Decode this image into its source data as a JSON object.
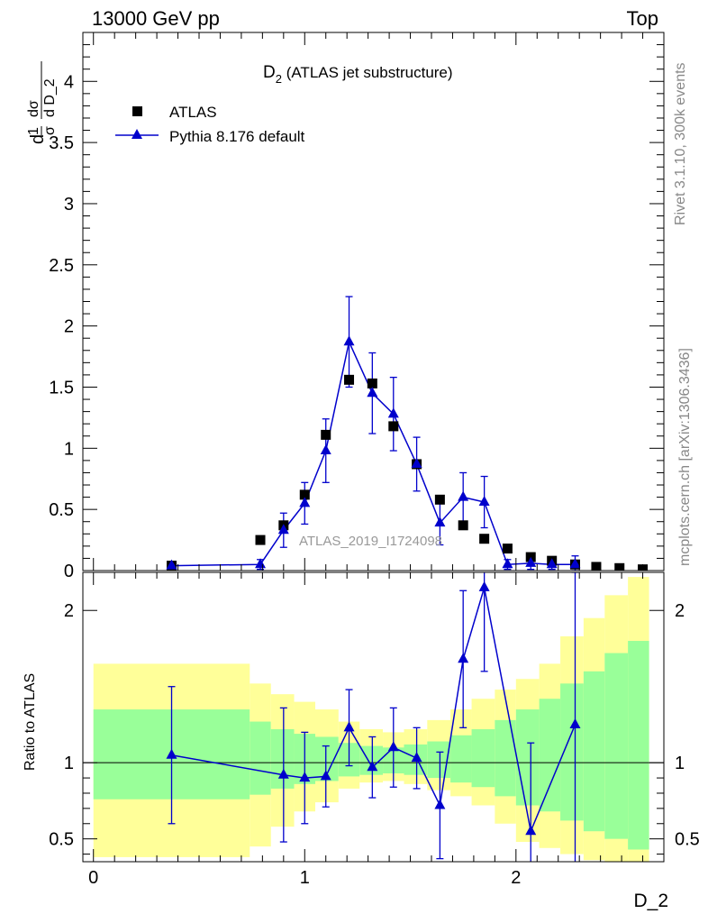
{
  "header": {
    "left": "13000 GeV pp",
    "right": "Top"
  },
  "side_labels": {
    "rivet": "Rivet 3.1.10,  300k events",
    "mcplots": "mcplots.cern.ch [arXiv:1306.3436]"
  },
  "main_title": {
    "base": "D",
    "sub": "2",
    "rest": " (ATLAS jet substructure)"
  },
  "watermark": "ATLAS_2019_I1724098",
  "ylabel_main": "1/σ dσ/d D_2",
  "ylabel_ratio": "Ratio to ATLAS",
  "xlabel": "D_2",
  "colors": {
    "data": "#000000",
    "mc": "#0000cc",
    "band_inner": "#99ff99",
    "band_outer": "#ffff99"
  },
  "chart_data": [
    {
      "type": "scatter",
      "panel": "main",
      "xlim": [
        -0.05,
        2.7
      ],
      "ylim": [
        0,
        4.4
      ],
      "yticks": [
        "0",
        "0.5",
        "1",
        "1.5",
        "2",
        "2.5",
        "3",
        "3.5",
        "4"
      ],
      "xticks": [
        "0",
        "1",
        "2"
      ],
      "legend_position": "top-left",
      "series": [
        {
          "name": "ATLAS",
          "marker": "square",
          "x": [
            0.37,
            0.79,
            0.9,
            1.0,
            1.1,
            1.21,
            1.32,
            1.42,
            1.53,
            1.64,
            1.75,
            1.85,
            1.96,
            2.07,
            2.17,
            2.28,
            2.38,
            2.49,
            2.6
          ],
          "y": [
            0.04,
            0.25,
            0.37,
            0.62,
            1.11,
            1.56,
            1.53,
            1.18,
            0.87,
            0.58,
            0.37,
            0.26,
            0.18,
            0.11,
            0.08,
            0.05,
            0.03,
            0.02,
            0.01
          ]
        },
        {
          "name": "Pythia 8.176 default",
          "marker": "triangle",
          "x": [
            0.37,
            0.79,
            0.9,
            1.0,
            1.1,
            1.21,
            1.32,
            1.42,
            1.53,
            1.64,
            1.75,
            1.85,
            1.96,
            2.07,
            2.17,
            2.28
          ],
          "y": [
            0.04,
            0.05,
            0.33,
            0.55,
            0.98,
            1.87,
            1.45,
            1.28,
            0.87,
            0.39,
            0.6,
            0.56,
            0.05,
            0.06,
            0.05,
            0.05
          ],
          "yerr": [
            0.02,
            0.04,
            0.14,
            0.17,
            0.26,
            0.37,
            0.33,
            0.3,
            0.22,
            0.18,
            0.2,
            0.21,
            0.04,
            0.05,
            0.04,
            0.07
          ]
        }
      ]
    },
    {
      "type": "line",
      "panel": "ratio",
      "xlim": [
        -0.05,
        2.7
      ],
      "ylim": [
        0.35,
        2.25
      ],
      "yticks": [
        "0.5",
        "1",
        "2"
      ],
      "xticks": [
        "0",
        "1",
        "2"
      ],
      "reference_line": 1,
      "bands": {
        "edges": [
          0.0,
          0.74,
          0.84,
          0.95,
          1.05,
          1.16,
          1.26,
          1.37,
          1.47,
          1.58,
          1.69,
          1.79,
          1.9,
          2.0,
          2.11,
          2.21,
          2.32,
          2.42,
          2.53,
          2.63
        ],
        "inner_low": [
          0.76,
          0.79,
          0.83,
          0.86,
          0.88,
          0.91,
          0.92,
          0.93,
          0.92,
          0.9,
          0.87,
          0.84,
          0.78,
          0.72,
          0.68,
          0.62,
          0.55,
          0.5,
          0.43
        ],
        "inner_high": [
          1.35,
          1.27,
          1.22,
          1.19,
          1.17,
          1.13,
          1.11,
          1.1,
          1.12,
          1.14,
          1.18,
          1.22,
          1.28,
          1.35,
          1.42,
          1.52,
          1.6,
          1.72,
          1.8
        ],
        "outer_low": [
          0.38,
          0.45,
          0.58,
          0.68,
          0.74,
          0.83,
          0.87,
          0.88,
          0.86,
          0.82,
          0.78,
          0.72,
          0.6,
          0.48,
          0.44,
          0.4,
          0.36,
          0.35,
          0.35
        ],
        "outer_high": [
          1.65,
          1.52,
          1.45,
          1.4,
          1.35,
          1.27,
          1.22,
          1.2,
          1.22,
          1.28,
          1.35,
          1.42,
          1.48,
          1.55,
          1.65,
          1.83,
          1.95,
          2.1,
          2.22
        ]
      },
      "series": [
        {
          "name": "Pythia 8.176 default",
          "x": [
            0.37,
            0.9,
            1.0,
            1.1,
            1.21,
            1.32,
            1.42,
            1.53,
            1.64,
            1.75,
            1.85,
            2.07,
            2.28
          ],
          "y": [
            1.05,
            0.92,
            0.9,
            0.91,
            1.23,
            0.97,
            1.1,
            1.03,
            0.72,
            1.68,
            2.15,
            0.55,
            1.25
          ],
          "yerr": [
            0.45,
            0.44,
            0.3,
            0.2,
            0.25,
            0.2,
            0.26,
            0.2,
            0.35,
            0.45,
            0.55,
            0.58,
            1.0
          ]
        }
      ]
    }
  ]
}
